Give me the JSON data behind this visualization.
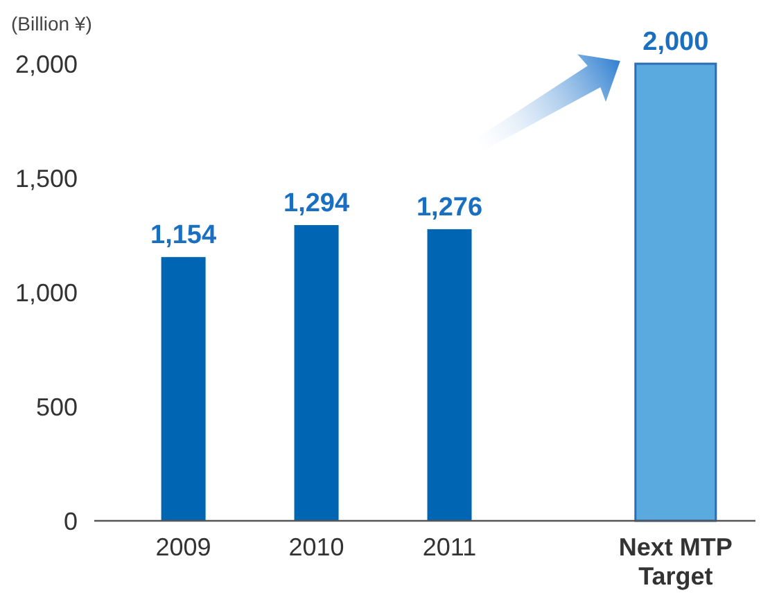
{
  "chart_data": {
    "type": "bar",
    "ylabel": "(Billion ¥)",
    "categories": [
      "2009",
      "2010",
      "2011",
      "Next MTP\nTarget"
    ],
    "values": [
      1154,
      1294,
      1276,
      2000
    ],
    "colors": [
      "#0066b3",
      "#0066b3",
      "#0066b3",
      "#5aaae0"
    ],
    "ylim": [
      0,
      2000
    ],
    "yticks": [
      {
        "value": 0,
        "label": "0"
      },
      {
        "value": 500,
        "label": "500"
      },
      {
        "value": 1000,
        "label": "1,000"
      },
      {
        "value": 1500,
        "label": "1,500"
      },
      {
        "value": 2000,
        "label": "2,000"
      }
    ],
    "value_labels": [
      "1,154",
      "1,294",
      "1,276",
      "2,000"
    ],
    "grid": false
  }
}
